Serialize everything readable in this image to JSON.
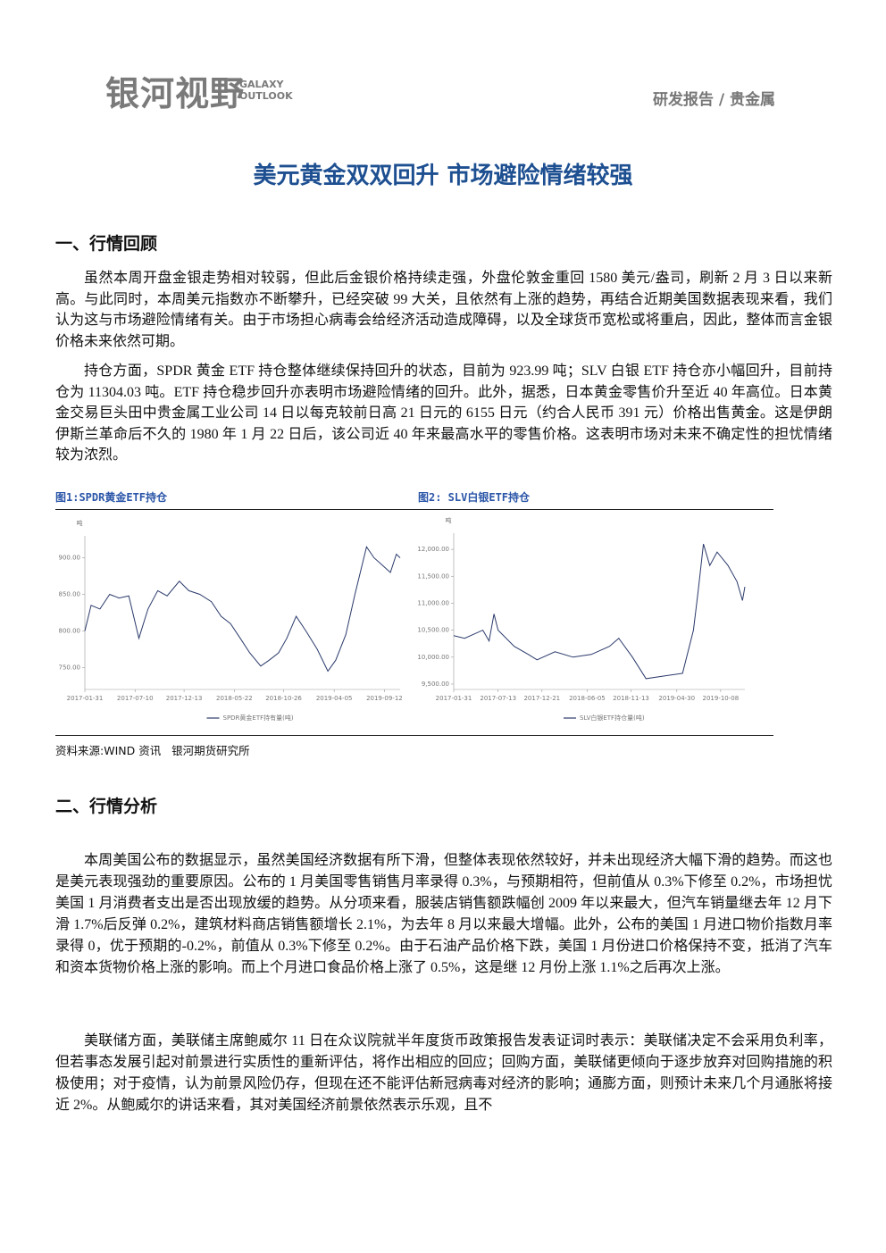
{
  "header": {
    "logo": "银河视野",
    "logo_sub": [
      "GALAXY",
      "OUTLOOK"
    ],
    "section": "研发报告 / 贵金属"
  },
  "title": "美元黄金双双回升 市场避险情绪较强",
  "sections": [
    {
      "heading": "一、行情回顾",
      "paragraphs": [
        "虽然本周开盘金银走势相对较弱，但此后金银价格持续走强，外盘伦敦金重回 1580 美元/盎司，刷新 2 月 3 日以来新高。与此同时，本周美元指数亦不断攀升，已经突破 99 大关，且依然有上涨的趋势，再结合近期美国数据表现来看，我们认为这与市场避险情绪有关。由于市场担心病毒会给经济活动造成障碍，以及全球货币宽松或将重启，因此，整体而言金银价格未来依然可期。",
        "持仓方面，SPDR 黄金 ETF 持仓整体继续保持回升的状态，目前为 923.99 吨；SLV 白银 ETF 持仓亦小幅回升，目前持仓为 11304.03 吨。ETF 持仓稳步回升亦表明市场避险情绪的回升。此外，据悉，日本黄金零售价升至近 40 年高位。日本黄金交易巨头田中贵金属工业公司 14 日以每克较前日高 21 日元的 6155 日元（约合人民币 391 元）价格出售黄金。这是伊朗伊斯兰革命后不久的 1980 年 1 月 22 日后，该公司近 40 年来最高水平的零售价格。这表明市场对未来不确定性的担忧情绪较为浓烈。"
      ]
    },
    {
      "heading": "二、行情分析",
      "paragraphs": [
        "本周美国公布的数据显示，虽然美国经济数据有所下滑，但整体表现依然较好，并未出现经济大幅下滑的趋势。而这也是美元表现强劲的重要原因。公布的 1 月美国零售销售月率录得 0.3%，与预期相符，但前值从 0.3%下修至 0.2%，市场担忧美国 1 月消费者支出是否出现放缓的趋势。从分项来看，服装店销售额跌幅创 2009 年以来最大，但汽车销量继去年 12 月下滑 1.7%后反弹 0.2%，建筑材料商店销售额增长 2.1%，为去年 8 月以来最大增幅。此外，公布的美国 1 月进口物价指数月率录得 0，优于预期的-0.2%，前值从 0.3%下修至 0.2%。由于石油产品价格下跌，美国 1 月份进口价格保持不变，抵消了汽车和资本货物价格上涨的影响。而上个月进口食品价格上涨了 0.5%，这是继 12 月份上涨 1.1%之后再次上涨。",
        "美联储方面，美联储主席鲍威尔 11 日在众议院就半年度货币政策报告发表证词时表示：美联储决定不会采用负利率，但若事态发展引起对前景进行实质性的重新评估，将作出相应的回应；回购方面，美联储更倾向于逐步放弃对回购措施的积极使用；对于疫情，认为前景风险仍存，但现在还不能评估新冠病毒对经济的影响；通膨方面，则预计未来几个月通胀将接近 2%。从鲍威尔的讲话来看，其对美国经济前景依然表示乐观，且不"
      ]
    }
  ],
  "source": "资料来源:WIND 资讯   银河期货研究所",
  "chart_data": [
    {
      "type": "line",
      "title": "图1:SPDR黄金ETF持仓",
      "y_label": "吨",
      "x": [
        "2017-01-31",
        "2017-02-20",
        "2017-03-20",
        "2017-04-20",
        "2017-05-20",
        "2017-06-20",
        "2017-07-22",
        "2017-08-20",
        "2017-09-20",
        "2017-10-20",
        "2017-11-28",
        "2017-12-28",
        "2018-02-01",
        "2018-03-10",
        "2018-04-10",
        "2018-05-10",
        "2018-06-10",
        "2018-07-10",
        "2018-08-14",
        "2018-09-10",
        "2018-10-10",
        "2018-11-05",
        "2018-12-05",
        "2019-01-05",
        "2019-02-10",
        "2019-03-16",
        "2019-04-10",
        "2019-05-12",
        "2019-06-10",
        "2019-07-17",
        "2019-08-10",
        "2019-09-05",
        "2019-10-01",
        "2019-10-20",
        "2019-11-01"
      ],
      "series": [
        {
          "name": "SPDR黄金ETF持有量(吨)",
          "color": "#2b3a6b",
          "values": [
            800,
            835,
            830,
            850,
            845,
            848,
            790,
            830,
            855,
            848,
            868,
            855,
            850,
            840,
            820,
            810,
            790,
            770,
            752,
            760,
            770,
            790,
            820,
            800,
            775,
            745,
            760,
            795,
            850,
            915,
            900,
            890,
            880,
            905,
            900
          ]
        }
      ],
      "xlim": [
        "2017-01-31",
        "2019-11-01"
      ],
      "xticks": [
        "2017-01-31",
        "2017-07-10",
        "2017-12-13",
        "2018-05-22",
        "2018-10-26",
        "2019-04-05",
        "2019-09-12"
      ],
      "ylim": [
        720,
        930
      ],
      "yticks": [
        {
          "value": 750,
          "label": "750.00"
        },
        {
          "value": 800,
          "label": "800.00"
        },
        {
          "value": 850,
          "label": "850.00"
        },
        {
          "value": 900,
          "label": "900.00"
        }
      ],
      "grid": false
    },
    {
      "type": "line",
      "title": "图2: SLV白银ETF持仓",
      "y_label": "吨",
      "x": [
        "2017-01-31",
        "2017-03-12",
        "2017-05-18",
        "2017-06-10",
        "2017-06-28",
        "2017-07-13",
        "2017-09-10",
        "2017-11-01",
        "2017-12-03",
        "2018-02-07",
        "2018-04-14",
        "2018-06-20",
        "2018-08-26",
        "2018-09-29",
        "2018-11-18",
        "2019-01-07",
        "2019-03-15",
        "2019-05-21",
        "2019-06-30",
        "2019-07-17",
        "2019-08-06",
        "2019-08-29",
        "2019-09-25",
        "2019-11-04",
        "2019-12-07",
        "2019-12-27",
        "2020-01-05"
      ],
      "series": [
        {
          "name": "SLV白银ETF持仓量(吨)",
          "color": "#2b3a6b",
          "values": [
            10400,
            10350,
            10500,
            10300,
            10800,
            10500,
            10200,
            10050,
            9950,
            10100,
            10000,
            10050,
            10200,
            10350,
            10000,
            9600,
            9650,
            9700,
            10500,
            11200,
            12100,
            11700,
            11950,
            11700,
            11400,
            11050,
            11304.03
          ]
        }
      ],
      "xlim": [
        "2017-01-31",
        "2020-01-05"
      ],
      "xticks": [
        "2017-01-31",
        "2017-07-13",
        "2017-12-21",
        "2018-06-05",
        "2018-11-13",
        "2019-04-30",
        "2019-10-08"
      ],
      "ylim": [
        9400,
        12300
      ],
      "yticks": [
        {
          "value": 9500,
          "label": "9,500.00"
        },
        {
          "value": 10000,
          "label": "10,000.00"
        },
        {
          "value": 10500,
          "label": "10,500.00"
        },
        {
          "value": 11000,
          "label": "11,000.00"
        },
        {
          "value": 11500,
          "label": "11,500.00"
        },
        {
          "value": 12000,
          "label": "12,000.00"
        }
      ],
      "grid": false
    }
  ]
}
